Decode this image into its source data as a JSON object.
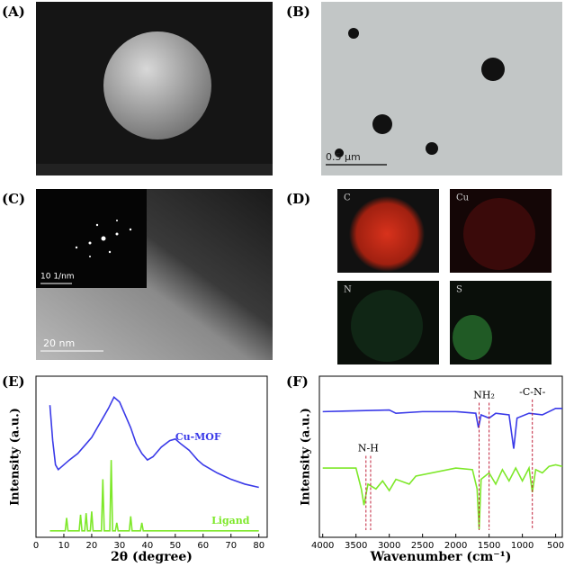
{
  "panels": {
    "labels": [
      "(A)",
      "(B)",
      "(C)",
      "(D)",
      "(E)",
      "(F)"
    ]
  },
  "scale_bars": {
    "b": "0.5 μm",
    "c": "20 nm",
    "c_inset": "10 1/nm"
  },
  "eds": [
    "C",
    "Cu",
    "N",
    "S"
  ],
  "chart_data": [
    {
      "type": "line",
      "xlabel": "2θ (degree)",
      "ylabel": "Intensity (a.u.)",
      "xlim": [
        0,
        83
      ],
      "xticks": [
        0,
        10,
        20,
        30,
        40,
        50,
        60,
        70,
        80
      ],
      "ylim": [
        0,
        100
      ],
      "series": [
        {
          "name": "Cu-MOF",
          "color": "#3a3ae8",
          "label_at": [
            50,
            62
          ],
          "x": [
            5,
            6,
            7,
            8,
            10,
            12,
            15,
            18,
            20,
            22,
            24,
            26,
            28,
            30,
            32,
            34,
            36,
            38,
            40,
            42,
            45,
            48,
            50,
            52,
            55,
            58,
            60,
            65,
            70,
            75,
            80
          ],
          "values": [
            82,
            60,
            45,
            42,
            45,
            48,
            52,
            58,
            62,
            68,
            74,
            80,
            87,
            84,
            76,
            68,
            58,
            52,
            48,
            50,
            56,
            60,
            61,
            58,
            54,
            48,
            45,
            40,
            36,
            33,
            31
          ]
        },
        {
          "name": "Ligand",
          "color": "#7ee82a",
          "label_at": [
            63,
            10
          ],
          "x": [
            5,
            10.5,
            11,
            11.5,
            15.5,
            16,
            16.5,
            17.5,
            18,
            18.5,
            19.5,
            20,
            20.5,
            23.5,
            24,
            24.5,
            26.5,
            27,
            27.5,
            28.5,
            29,
            29.5,
            33.5,
            34,
            34.5,
            37.5,
            38,
            38.5,
            80
          ],
          "values": [
            4,
            4,
            12,
            4,
            4,
            14,
            4,
            4,
            15,
            4,
            4,
            16,
            4,
            4,
            36,
            4,
            4,
            48,
            4,
            4,
            9,
            4,
            4,
            13,
            4,
            4,
            9,
            4,
            4
          ]
        }
      ]
    },
    {
      "type": "line",
      "xlabel": "Wavenumber (cm⁻¹)",
      "ylabel": "Intensity (a.u.)",
      "xlim": [
        4050,
        400
      ],
      "xticks": [
        4000,
        3500,
        3000,
        2500,
        2000,
        1500,
        1000,
        500
      ],
      "ylim": [
        0,
        100
      ],
      "series": [
        {
          "color": "#3a3ae8",
          "x": [
            4000,
            3000,
            2900,
            2500,
            2000,
            1700,
            1660,
            1620,
            1500,
            1400,
            1200,
            1130,
            1080,
            900,
            700,
            500,
            400
          ],
          "values": [
            78,
            79,
            77,
            78,
            78,
            77,
            68,
            76,
            74,
            77,
            76,
            55,
            74,
            77,
            76,
            80,
            80
          ]
        },
        {
          "color": "#7ee82a",
          "x": [
            4000,
            3500,
            3420,
            3380,
            3320,
            3200,
            3100,
            3000,
            2900,
            2700,
            2600,
            2000,
            1750,
            1680,
            1650,
            1620,
            1500,
            1400,
            1300,
            1200,
            1100,
            1000,
            900,
            850,
            800,
            700,
            600,
            500,
            400
          ],
          "values": [
            43,
            43,
            30,
            20,
            33,
            30,
            35,
            29,
            36,
            33,
            38,
            43,
            42,
            30,
            5,
            36,
            40,
            33,
            42,
            35,
            43,
            35,
            43,
            28,
            42,
            40,
            44,
            45,
            44
          ]
        }
      ],
      "annotations": [
        {
          "text": "N-H",
          "x": [
            3350,
            3280
          ],
          "y": 55
        },
        {
          "text": "NH₂",
          "x": [
            1650,
            1500
          ],
          "y": 88
        },
        {
          "text": "-C-N-",
          "x": [
            850
          ],
          "y": 90
        }
      ]
    }
  ]
}
